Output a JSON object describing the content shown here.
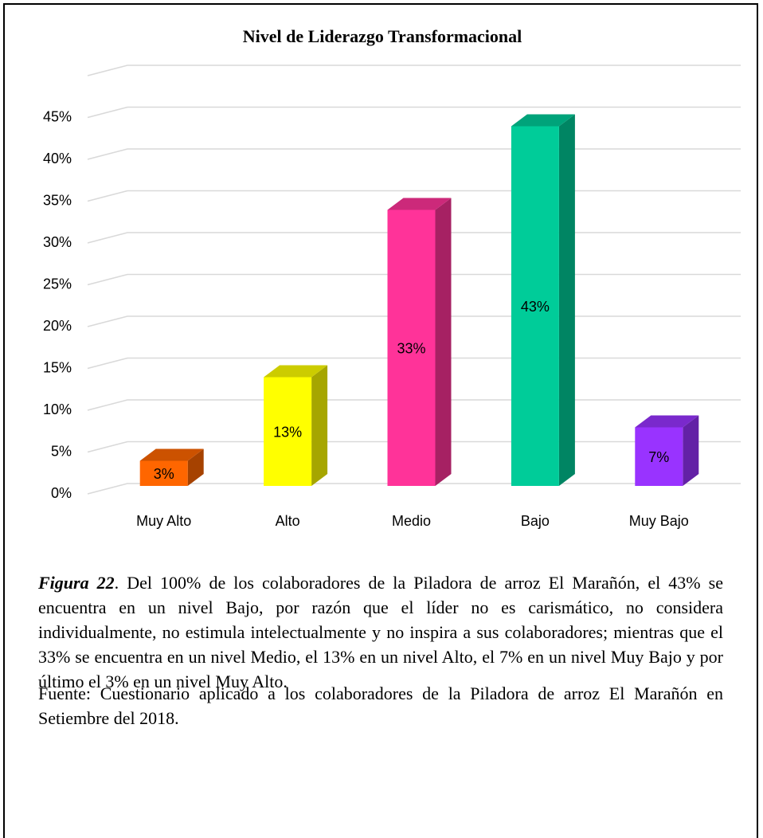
{
  "chart_data": {
    "type": "bar3d",
    "title": "Nivel de Liderazgo Transformacional",
    "categories": [
      "Muy Alto",
      "Alto",
      "Medio",
      "Bajo",
      "Muy Bajo"
    ],
    "values": [
      3,
      13,
      33,
      43,
      7
    ],
    "value_labels": [
      "3%",
      "13%",
      "33%",
      "43%",
      "7%"
    ],
    "colors": [
      "#ff6600",
      "#ffff00",
      "#ff3399",
      "#00cc99",
      "#9933ff"
    ],
    "ylim": [
      0,
      50
    ],
    "yticks": [
      {
        "value": 0,
        "label": "0%"
      },
      {
        "value": 5,
        "label": "5%"
      },
      {
        "value": 10,
        "label": "10%"
      },
      {
        "value": 15,
        "label": "15%"
      },
      {
        "value": 20,
        "label": "20%"
      },
      {
        "value": 25,
        "label": "25%"
      },
      {
        "value": 30,
        "label": "30%"
      },
      {
        "value": 35,
        "label": "35%"
      },
      {
        "value": 40,
        "label": "40%"
      },
      {
        "value": 45,
        "label": "45%"
      }
    ],
    "grid": true
  },
  "caption": {
    "figure_label": "Figura 22",
    "text": ". Del 100% de los colaboradores de la Piladora de arroz El Marañón, el 43% se encuentra en un nivel Bajo, por razón que el líder no es carismático, no considera individualmente, no estimula intelectualmente y no inspira a sus colaboradores; mientras que el 33% se encuentra en un nivel Medio, el 13% en un nivel Alto, el 7% en un nivel Muy Bajo y por último el 3% en un nivel Muy Alto."
  },
  "source": "Fuente: Cuestionario aplicado a los colaboradores de la Piladora de arroz El Marañón en Setiembre del 2018."
}
